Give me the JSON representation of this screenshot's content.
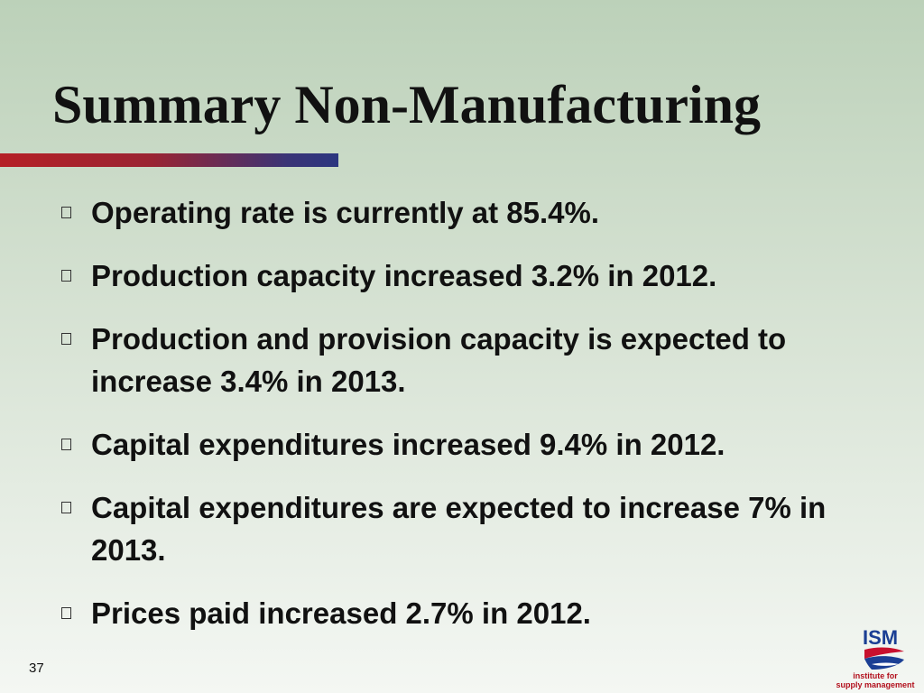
{
  "slide": {
    "title": "Summary Non-Manufacturing",
    "bullets": [
      "Operating rate is currently at 85.4%.",
      "Production capacity increased 3.2% in 2012.",
      "Production and provision capacity is expected to increase 3.4% in 2013.",
      "Capital expenditures increased 9.4% in 2012.",
      "Capital expenditures are expected to increase 7% in 2013.",
      "Prices paid increased 2.7% in 2012."
    ],
    "page_number": "37"
  },
  "logo": {
    "name": "ISM",
    "line1": "institute for",
    "line2": "supply management",
    "colors": {
      "blue": "#1b3f94",
      "red": "#c8102e"
    }
  },
  "theme": {
    "title_bar_colors": [
      "#b52026",
      "#2c3680"
    ],
    "background_top": "#bcd1b9",
    "background_bottom": "#f4f7f3"
  }
}
